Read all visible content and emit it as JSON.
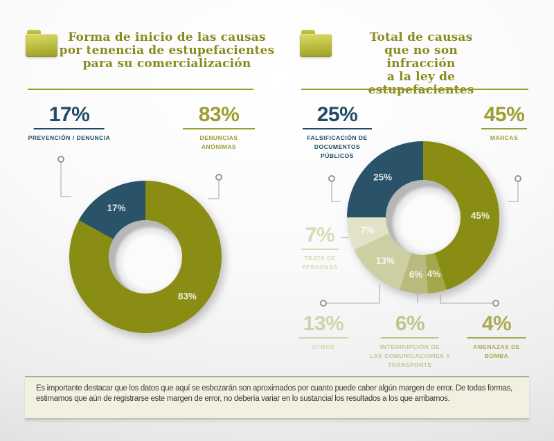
{
  "charts": [
    {
      "callouts": [
        {
          "pct": "17%",
          "label": "PREVENCIÓN / DENUNCIA",
          "color": "#1F4C66"
        },
        {
          "pct": "83%",
          "label": "DENUNCIAS\nANÓNIMAS",
          "color": "#9C9E2E"
        }
      ]
    },
    {
      "callouts": [
        {
          "pct": "25%",
          "label": "FALSIFICACIÓN DE\nDOCUMENTOS\nPÚBLICOS",
          "color": "#1F4C66"
        },
        {
          "pct": "45%",
          "label": "MARCAS",
          "color": "#9C9E2E"
        },
        {
          "pct": "7%",
          "label": "TRATA DE\nPERSONAS",
          "color": "#D9DAB6"
        },
        {
          "pct": "13%",
          "label": "OTROS",
          "color": "#D2D3AC"
        },
        {
          "pct": "6%",
          "label": "INTERRUPCIÓN DE\nLAS COMUNICACIONES Y\nTRANSPORTE",
          "color": "#C2C48C"
        },
        {
          "pct": "4%",
          "label": "AMENAZAS DE\nBOMBA",
          "color": "#A8AB54"
        }
      ]
    }
  ],
  "chart_data": [
    {
      "type": "donut",
      "title": "Forma de inicio de las causas\npor tenencia de estupefacientes\npara su comercialización",
      "slices": [
        {
          "label": "DENUNCIAS ANÓNIMAS",
          "value": 83,
          "color": "#8A8D14",
          "label_angle": 133
        },
        {
          "label": "PREVENCIÓN / DENUNCIA",
          "value": 17,
          "color": "#2A5269"
        }
      ],
      "start_angle": 0,
      "slice_label_suffix": "%",
      "legend_position": "callouts"
    },
    {
      "type": "donut",
      "title": "Total de causas\nque no son infracción\na la ley de estupefacientes",
      "slices": [
        {
          "label": "MARCAS",
          "value": 45,
          "color": "#8A8D14",
          "label_angle": 88
        },
        {
          "label": "AMENAZAS DE BOMBA",
          "value": 4,
          "color": "#A4A74B"
        },
        {
          "label": "INTERRUPCIÓN DE LAS COMUNICACIONES Y TRANSPORTE",
          "value": 6,
          "color": "#B9BB7E"
        },
        {
          "label": "OTROS",
          "value": 13,
          "color": "#CDCFA3"
        },
        {
          "label": "TRATA DE PERSONAS",
          "value": 7,
          "color": "#E2E2C8"
        },
        {
          "label": "FALSIFICACIÓN DE DOCUMENTOS PÚBLICOS",
          "value": 25,
          "color": "#2A5269"
        }
      ],
      "start_angle": 0,
      "slice_label_suffix": "%",
      "legend_position": "callouts"
    }
  ],
  "footer": {
    "note": "Es importante destacar que los datos que aquí se esbozarán son aproximados por cuanto puede caber algún margen de error. De todas formas, estimamos que aún de registrarse este margen de error, no debería variar en lo sustancial los resultados a los que arribamos."
  }
}
